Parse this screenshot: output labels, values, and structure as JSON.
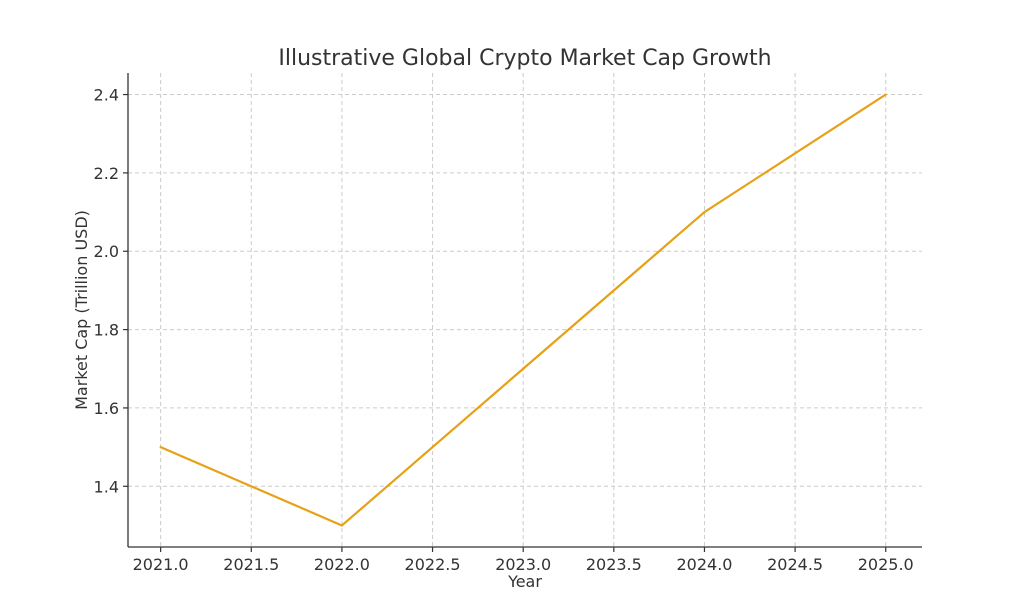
{
  "chart_data": {
    "type": "line",
    "title": "Illustrative Global Crypto Market Cap Growth",
    "xlabel": "Year",
    "ylabel": "Market Cap (Trillion USD)",
    "x": [
      2021,
      2022,
      2023,
      2024,
      2025
    ],
    "series": [
      {
        "values": [
          1.5,
          1.3,
          1.7,
          2.1,
          2.4
        ],
        "color": "#E6A117"
      }
    ],
    "xlim": [
      2020.82,
      2025.2
    ],
    "ylim": [
      1.245,
      2.455
    ],
    "xticks": [
      2021.0,
      2021.5,
      2022.0,
      2022.5,
      2023.0,
      2023.5,
      2024.0,
      2024.5,
      2025.0
    ],
    "xtick_labels": [
      "2021.0",
      "2021.5",
      "2022.0",
      "2022.5",
      "2023.0",
      "2023.5",
      "2024.0",
      "2024.5",
      "2025.0"
    ],
    "yticks": [
      1.4,
      1.6,
      1.8,
      2.0,
      2.2,
      2.4
    ],
    "ytick_labels": [
      "1.4",
      "1.6",
      "1.8",
      "2.0",
      "2.2",
      "2.4"
    ],
    "grid": true,
    "legend": false
  }
}
